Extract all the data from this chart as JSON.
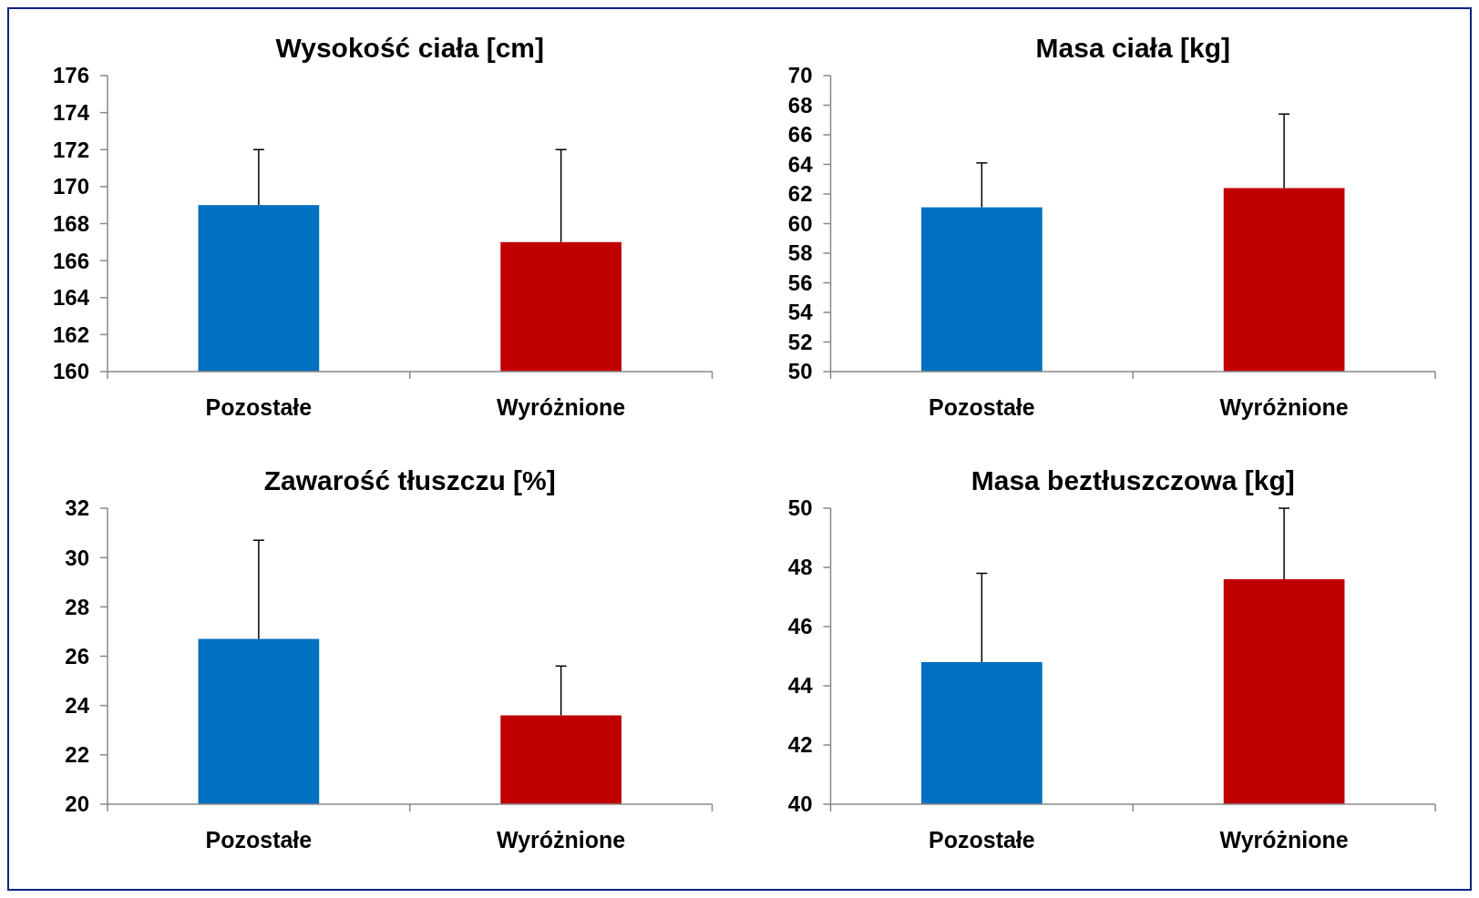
{
  "chart_data": [
    {
      "type": "bar",
      "title": "Wysokość ciała [cm]",
      "categories": [
        "Pozostałe",
        "Wyróżnione"
      ],
      "values": [
        169,
        167
      ],
      "colors": [
        "#0070c0",
        "#c00000"
      ],
      "errors": [
        [
          169,
          172
        ],
        [
          167,
          172
        ]
      ],
      "ylim": [
        160,
        176
      ],
      "yticks": [
        160,
        162,
        164,
        166,
        168,
        170,
        172,
        174,
        176
      ],
      "grid": false
    },
    {
      "type": "bar",
      "title": "Masa ciała [kg]",
      "categories": [
        "Pozostałe",
        "Wyróżnione"
      ],
      "values": [
        61.1,
        62.4
      ],
      "colors": [
        "#0070c0",
        "#c00000"
      ],
      "errors": [
        [
          61.1,
          64.1
        ],
        [
          62.4,
          67.4
        ]
      ],
      "ylim": [
        50,
        70
      ],
      "yticks": [
        50,
        52,
        54,
        56,
        58,
        60,
        62,
        64,
        66,
        68,
        70
      ],
      "grid": false
    },
    {
      "type": "bar",
      "title": "Zawarość tłuszczu [%]",
      "categories": [
        "Pozostałe",
        "Wyróżnione"
      ],
      "values": [
        26.7,
        23.6
      ],
      "colors": [
        "#0070c0",
        "#c00000"
      ],
      "errors": [
        [
          26.7,
          30.7
        ],
        [
          23.6,
          25.6
        ]
      ],
      "ylim": [
        20,
        32
      ],
      "yticks": [
        20,
        22,
        24,
        26,
        28,
        30,
        32
      ],
      "grid": false
    },
    {
      "type": "bar",
      "title": "Masa beztłuszczowa [kg]",
      "categories": [
        "Pozostałe",
        "Wyróżnione"
      ],
      "values": [
        44.8,
        47.6
      ],
      "colors": [
        "#0070c0",
        "#c00000"
      ],
      "errors": [
        [
          44.8,
          47.8
        ],
        [
          47.6,
          50
        ]
      ],
      "ylim": [
        40,
        50
      ],
      "yticks": [
        40,
        42,
        44,
        46,
        48,
        50
      ],
      "grid": false
    }
  ]
}
